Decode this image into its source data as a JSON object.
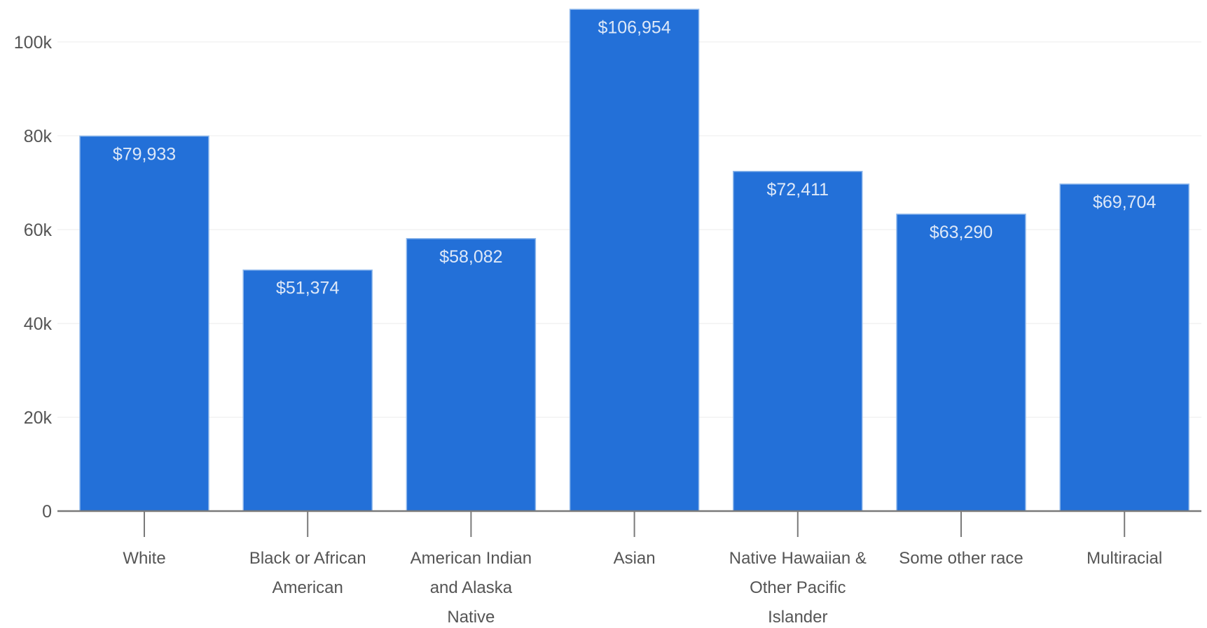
{
  "chart_data": {
    "type": "bar",
    "title": "",
    "xlabel": "",
    "ylabel": "",
    "categories": [
      "White",
      "Black or African American",
      "American Indian and Alaska Native",
      "Asian",
      "Native Hawaiian & Other Pacific Islander",
      "Some other race",
      "Multiracial"
    ],
    "category_lines": [
      [
        "White"
      ],
      [
        "Black or African",
        "American"
      ],
      [
        "American Indian",
        "and Alaska",
        "Native"
      ],
      [
        "Asian"
      ],
      [
        "Native Hawaiian &",
        "Other Pacific",
        "Islander"
      ],
      [
        "Some other race"
      ],
      [
        "Multiracial"
      ]
    ],
    "values": [
      79933,
      51374,
      58082,
      106954,
      72411,
      63290,
      69704
    ],
    "data_labels": [
      "$79,933",
      "$51,374",
      "$58,082",
      "$106,954",
      "$72,411",
      "$63,290",
      "$69,704"
    ],
    "yticks": [
      0,
      20000,
      40000,
      60000,
      80000,
      100000
    ],
    "ytick_labels": [
      "0",
      "20k",
      "40k",
      "60k",
      "80k",
      "100k"
    ],
    "ylim": [
      0,
      107000
    ],
    "grid": true,
    "legend": "none",
    "colors": {
      "bar": "#2370d8",
      "bar_edge": "#8fb8ec",
      "bar_label": "#dde8f8",
      "axis": "#7a7a7a",
      "grid": "#f2f2f2",
      "text": "#555555"
    }
  }
}
